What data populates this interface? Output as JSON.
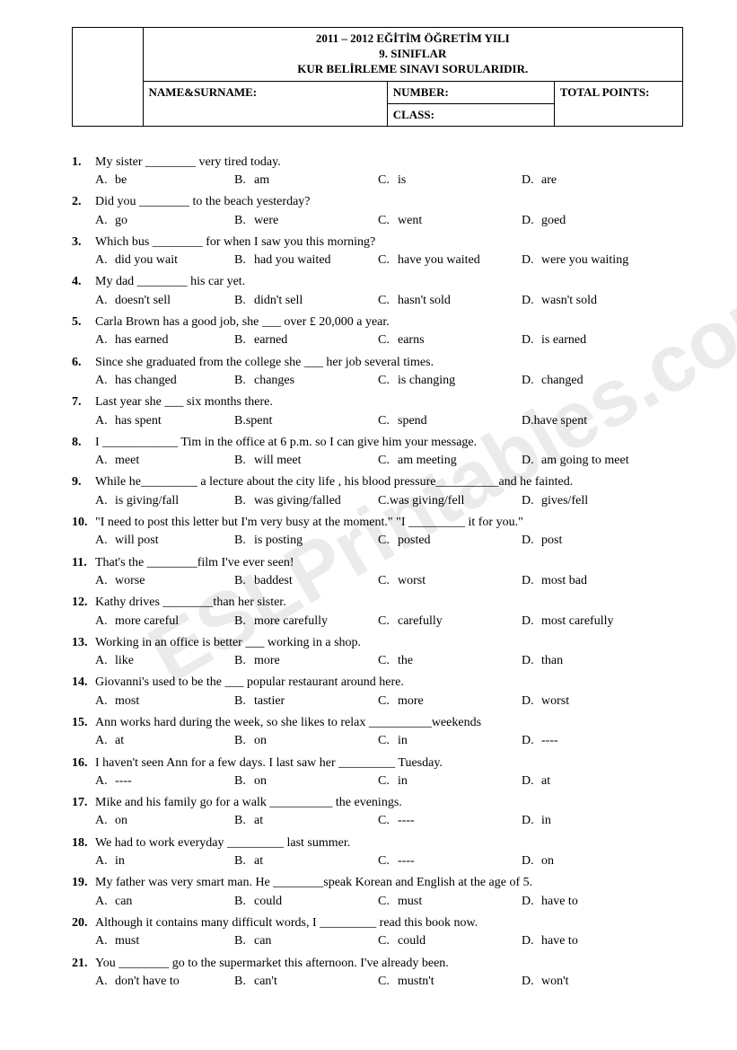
{
  "watermark_text": "ESLPrintables.com",
  "header": {
    "title_line1": "2011 – 2012 EĞİTİM ÖĞRETİM YILI",
    "title_line2": "9. SINIFLAR",
    "title_line3": "KUR BELİRLEME SINAVI SORULARIDIR.",
    "name_label": "NAME&SURNAME:",
    "number_label": "NUMBER:",
    "class_label": "CLASS:",
    "total_label": "TOTAL POINTS:"
  },
  "questions": [
    {
      "n": "1.",
      "stem": "My sister ________ very tired today.",
      "a": "be",
      "b": "am",
      "c": "is",
      "d": "are"
    },
    {
      "n": "2.",
      "stem": "Did you ________ to the beach yesterday?",
      "a": "go",
      "b": "were",
      "c": "went",
      "d": "goed"
    },
    {
      "n": "3.",
      "stem": "Which bus ________ for when I saw you this morning?",
      "a": "did you wait",
      "b": "had you waited",
      "c": "have you waited",
      "d": "were you waiting"
    },
    {
      "n": "4.",
      "stem": "My dad ________ his car yet.",
      "a": "doesn't sell",
      "b": "didn't sell",
      "c": "hasn't sold",
      "d": "wasn't sold"
    },
    {
      "n": "5.",
      "stem": "Carla Brown has a good job, she ___ over £ 20,000 a year.",
      "a": "has earned",
      "b": "earned",
      "c": "earns",
      "d": "is earned"
    },
    {
      "n": "6.",
      "stem": "Since she graduated from the college she ___ her job several times.",
      "a": "has changed",
      "b": "changes",
      "c": "is changing",
      "d": "changed"
    },
    {
      "n": "7.",
      "stem": "Last year she ___ six months there.",
      "a": "has spent",
      "b": "B.spent",
      "c": "spend",
      "d": "D.have spent",
      "b_raw": true,
      "d_raw": true
    },
    {
      "n": "8.",
      "stem": "I ____________ Tim in the office at 6 p.m. so I can give him your message.",
      "a": "meet",
      "b": "will meet",
      "c": "am meeting",
      "d": "am going to meet"
    },
    {
      "n": "9.",
      "stem": "While he_________ a lecture about the city life , his blood pressure__________and he fainted.",
      "a": "is giving/fall",
      "b": "was giving/falled",
      "c": "C.was giving/fell",
      "d": "gives/fell",
      "c_raw": true
    },
    {
      "n": "10.",
      "stem": "\"I need to post this letter but I'm very busy at the moment.\" \"I _________ it for you.\"",
      "a": "will post",
      "b": "is posting",
      "c": "posted",
      "d": "post"
    },
    {
      "n": "11.",
      "stem": "That's the ________film I've ever seen!",
      "a": "worse",
      "b": "baddest",
      "c": "worst",
      "d": "most bad"
    },
    {
      "n": "12.",
      "stem": "Kathy drives ________than her sister.",
      "a": "more careful",
      "b": "more carefully",
      "c": "carefully",
      "d": "most carefully"
    },
    {
      "n": "13.",
      "stem": "Working in an office is better ___ working in a shop.",
      "a": "like",
      "b": "more",
      "c": "the",
      "d": "than"
    },
    {
      "n": "14.",
      "stem": "Giovanni's used to be the ___ popular restaurant around here.",
      "a": "most",
      "b": "tastier",
      "c": "more",
      "d": "worst"
    },
    {
      "n": "15.",
      "stem": "Ann works hard during the week, so she likes to relax __________weekends",
      "a": "at",
      "b": "on",
      "c": "in",
      "d": "----"
    },
    {
      "n": "16.",
      "stem": "I haven't seen Ann for a few days. I last saw her _________ Tuesday.",
      "a": "----",
      "b": "on",
      "c": "in",
      "d": "at"
    },
    {
      "n": "17.",
      "stem": "Mike and his family go for a walk __________ the evenings.",
      "a": "on",
      "b": "at",
      "c": "----",
      "d": "in"
    },
    {
      "n": "18.",
      "stem": "We had to work everyday _________ last summer.",
      "a": "in",
      "b": "at",
      "c": "----",
      "d": "on"
    },
    {
      "n": "19.",
      "stem": "My father was very smart man. He ________speak Korean and English at the age of 5.",
      "a": "can",
      "b": "could",
      "c": "must",
      "d": "have to"
    },
    {
      "n": "20.",
      "stem": "Although it contains many difficult words, I _________ read this book now.",
      "a": "must",
      "b": "can",
      "c": "could",
      "d": "have to"
    },
    {
      "n": "21.",
      "stem": "You ________ go to the supermarket this afternoon. I've already been.",
      "a": "don't have to",
      "b": "can't",
      "c": "mustn't",
      "d": "won't"
    }
  ]
}
